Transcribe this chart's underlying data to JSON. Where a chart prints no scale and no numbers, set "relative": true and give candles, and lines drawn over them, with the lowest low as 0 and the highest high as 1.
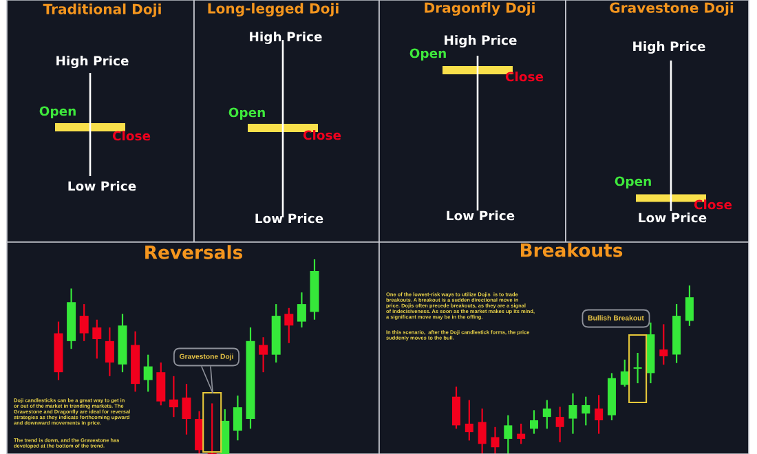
{
  "chart_data": [
    {
      "type": "other",
      "title": "Traditional Doji",
      "annotations": [
        "High Price",
        "Open",
        "Close",
        "Low Price"
      ]
    },
    {
      "type": "other",
      "title": "Long-legged Doji",
      "annotations": [
        "High Price",
        "Open",
        "Close",
        "Low Price"
      ]
    },
    {
      "type": "other",
      "title": "Dragonfly Doji",
      "annotations": [
        "High Price",
        "Open",
        "Close",
        "Low Price"
      ]
    },
    {
      "type": "other",
      "title": "Gravestone Doji",
      "annotations": [
        "High Price",
        "Open",
        "Close",
        "Low Price"
      ]
    },
    {
      "type": "candlestick",
      "title": "Reversals",
      "categories": [
        null,
        null,
        null,
        null,
        null,
        null,
        null,
        null,
        null,
        null,
        null,
        null,
        null,
        null,
        null,
        null,
        null,
        null,
        null,
        null,
        null
      ],
      "ohlc": [
        [
          0.62,
          0.68,
          0.38,
          0.42
        ],
        [
          0.58,
          0.85,
          0.54,
          0.78
        ],
        [
          0.71,
          0.77,
          0.58,
          0.62
        ],
        [
          0.65,
          0.69,
          0.49,
          0.59
        ],
        [
          0.58,
          0.65,
          0.4,
          0.47
        ],
        [
          0.46,
          0.72,
          0.42,
          0.66
        ],
        [
          0.56,
          0.63,
          0.32,
          0.36
        ],
        [
          0.38,
          0.51,
          0.32,
          0.45
        ],
        [
          0.42,
          0.47,
          0.25,
          0.27
        ],
        [
          0.28,
          0.4,
          0.19,
          0.24
        ],
        [
          0.29,
          0.36,
          0.1,
          0.18
        ],
        [
          0.18,
          0.22,
          0,
          0.02
        ],
        [
          0,
          0.26,
          0,
          0
        ],
        [
          0,
          0.23,
          0,
          0.17
        ],
        [
          0.12,
          0.3,
          0.07,
          0.24
        ],
        [
          0.18,
          0.65,
          0.13,
          0.58
        ],
        [
          0.56,
          0.6,
          0.42,
          0.51
        ],
        [
          0.51,
          0.77,
          0.47,
          0.71
        ],
        [
          0.72,
          0.75,
          0.57,
          0.66
        ],
        [
          0.68,
          0.83,
          0.65,
          0.77
        ],
        [
          0.73,
          1,
          0.69,
          0.94
        ]
      ],
      "colors": [
        "#f2001d",
        "#36e83a",
        "#f2001d",
        "#f2001d",
        "#f2001d",
        "#36e83a",
        "#f2001d",
        "#36e83a",
        "#f2001d",
        "#f2001d",
        "#f2001d",
        "#f2001d",
        "#f2001d",
        "#36e83a",
        "#36e83a",
        "#36e83a",
        "#f2001d",
        "#36e83a",
        "#f2001d",
        "#36e83a",
        "#36e83a"
      ],
      "relative": true,
      "annotations": [
        "Doji candlesticks can be a great way to get in\nor out of the market in trending markets. The\nGravestone and Dragonfly are ideal for reversal\nstrategies as they indicate forthcoming upward\nand downward movements in price.",
        "The trend is down, and the Gravestone has\ndeveloped at the bottom of the trend.",
        "Gravestone Doji"
      ]
    },
    {
      "type": "candlestick",
      "title": "Breakouts",
      "categories": [
        null,
        null,
        null,
        null,
        null,
        null,
        null,
        null,
        null,
        null,
        null,
        null,
        null,
        null,
        null,
        null,
        null,
        null,
        null
      ],
      "ohlc": [
        [
          0.34,
          0.4,
          0.15,
          0.17
        ],
        [
          0.18,
          0.32,
          0.08,
          0.13
        ],
        [
          0.19,
          0.27,
          0,
          0.06
        ],
        [
          0.1,
          0.16,
          0,
          0.04
        ],
        [
          0.09,
          0.23,
          0,
          0.17
        ],
        [
          0.12,
          0.18,
          0.06,
          0.09
        ],
        [
          0.15,
          0.26,
          0.12,
          0.2
        ],
        [
          0.22,
          0.32,
          0.15,
          0.27
        ],
        [
          0.22,
          0.28,
          0.07,
          0.16
        ],
        [
          0.21,
          0.36,
          0.12,
          0.29
        ],
        [
          0.24,
          0.34,
          0.17,
          0.29
        ],
        [
          0.27,
          0.35,
          0.12,
          0.2
        ],
        [
          0.23,
          0.48,
          0.2,
          0.45
        ],
        [
          0.41,
          0.56,
          0.4,
          0.49
        ],
        [
          0.51,
          0.6,
          0.42,
          0.51
        ],
        [
          0.48,
          0.78,
          0.42,
          0.71
        ],
        [
          0.62,
          0.77,
          0.53,
          0.58
        ],
        [
          0.59,
          0.89,
          0.54,
          0.82
        ],
        [
          0.79,
          1,
          0.76,
          0.93
        ]
      ],
      "colors": [
        "#f2001d",
        "#f2001d",
        "#f2001d",
        "#f2001d",
        "#36e83a",
        "#f2001d",
        "#36e83a",
        "#36e83a",
        "#f2001d",
        "#36e83a",
        "#36e83a",
        "#f2001d",
        "#36e83a",
        "#36e83a",
        "#36e83a",
        "#36e83a",
        "#f2001d",
        "#36e83a",
        "#36e83a"
      ],
      "relative": true,
      "annotations": [
        "One of the lowest-risk ways to utilize Dojis  is to trade\nbreakouts. A breakout is a sudden directional move in\nprice. Dojis often precede breakouts, as they are a signal\nof indecisiveness. As soon as the market makes up its mind,\na significant move may be in the offing.",
        "In this scenario,  after the Doji candlestick forms, the price\nsuddenly moves to the bull.",
        "Bullish Breakout"
      ]
    }
  ]
}
